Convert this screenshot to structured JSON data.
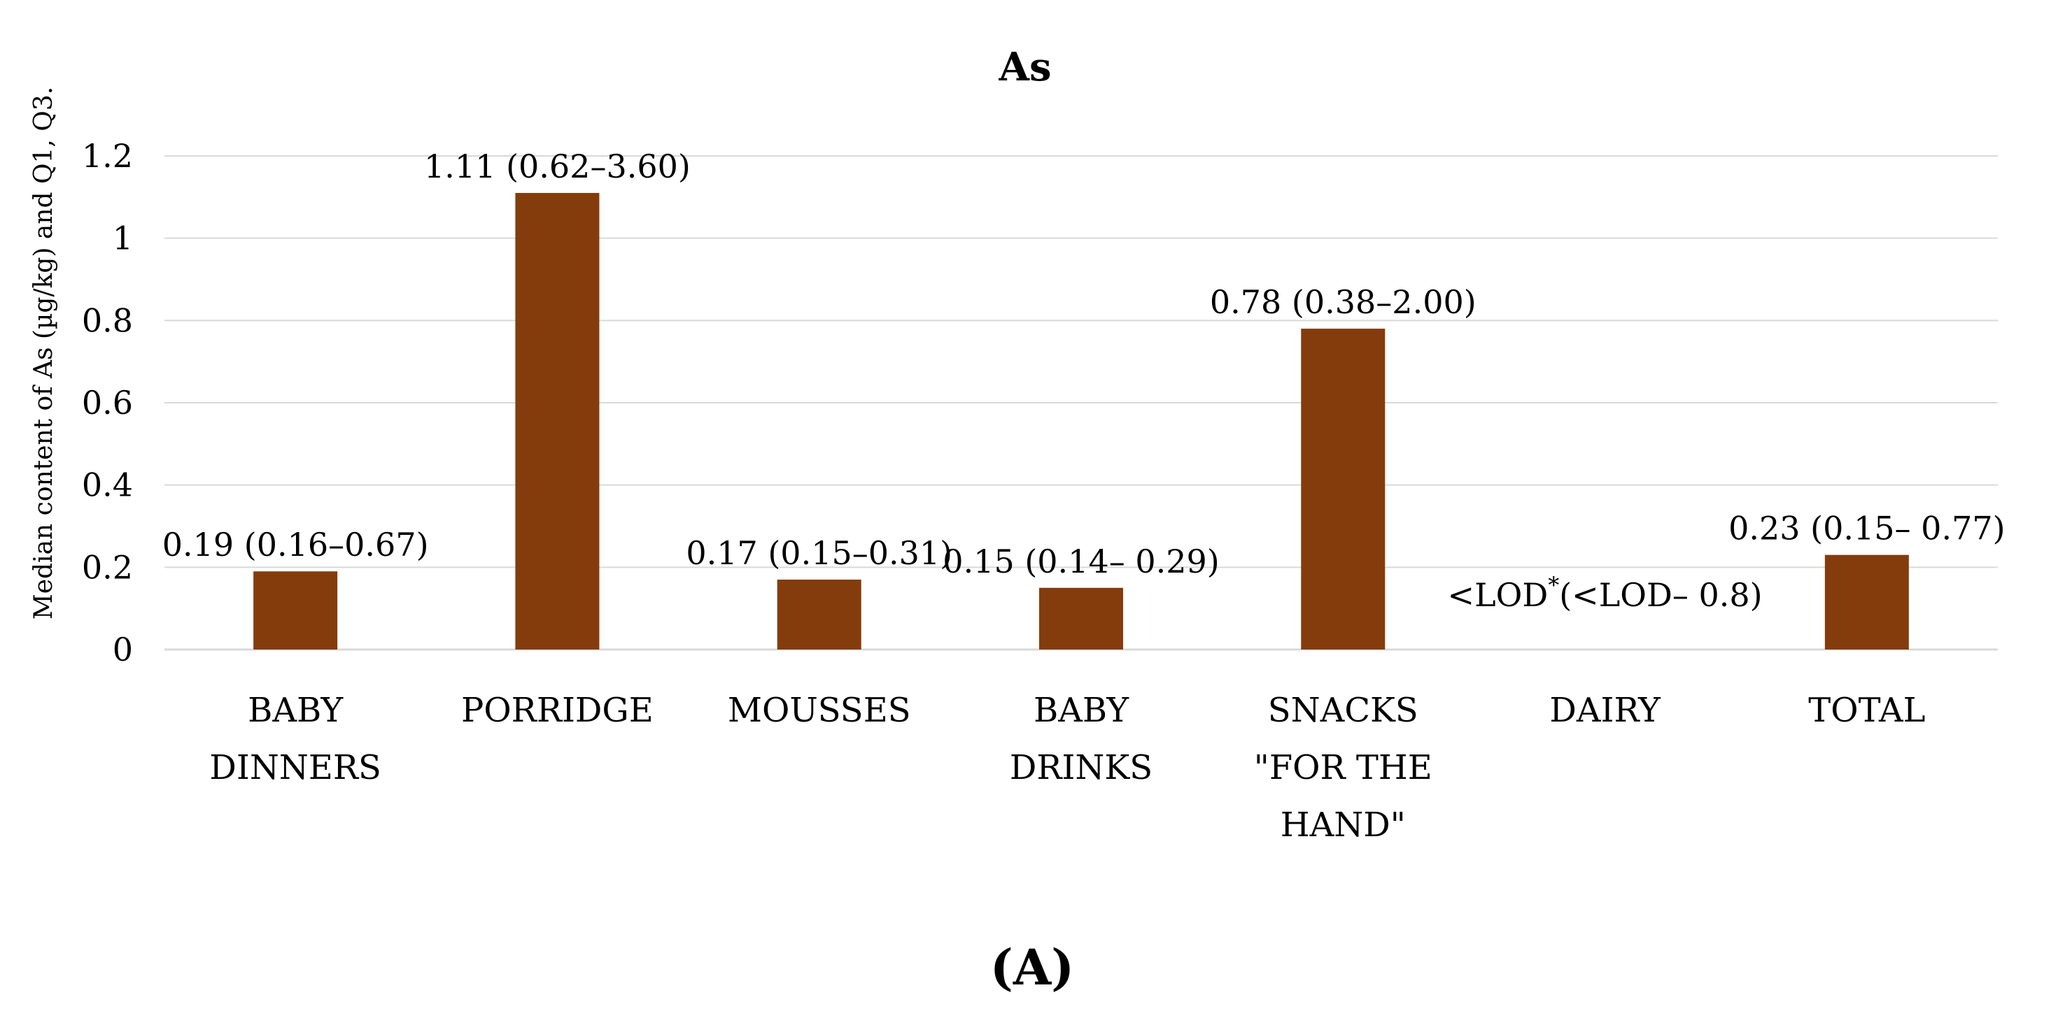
{
  "figure": {
    "panel_label": "(A)"
  },
  "chart_data": {
    "type": "bar",
    "title": "As",
    "ylabel": "Median content  of As (µg/kg) and Q1, Q3.",
    "xlabel": "",
    "ylim": [
      0,
      1.2
    ],
    "yticks": [
      "0",
      "0.2",
      "0.4",
      "0.6",
      "0.8",
      "1",
      "1.2"
    ],
    "grid": true,
    "bar_color": "#843c0c",
    "categories": [
      [
        "BABY",
        "DINNERS"
      ],
      [
        "PORRIDGE"
      ],
      [
        "MOUSSES"
      ],
      [
        "BABY",
        "DRINKS"
      ],
      [
        "SNACKS",
        "\"FOR THE",
        "HAND\""
      ],
      [
        "DAIRY"
      ],
      [
        "TOTAL"
      ]
    ],
    "values": [
      0.19,
      1.11,
      0.17,
      0.15,
      0.78,
      0,
      0.23
    ],
    "data_labels": [
      "0.19 (0.16–0.67)",
      "1.11 (0.62–3.60)",
      "0.17 (0.15–0.31)",
      "0.15 (0.14– 0.29)",
      "0.78 (0.38–2.00)",
      "<LOD",
      "0.23 (0.15– 0.77)"
    ],
    "dairy_label_rest": "(<LOD– 0.8)",
    "dairy_label_marker": "*"
  }
}
